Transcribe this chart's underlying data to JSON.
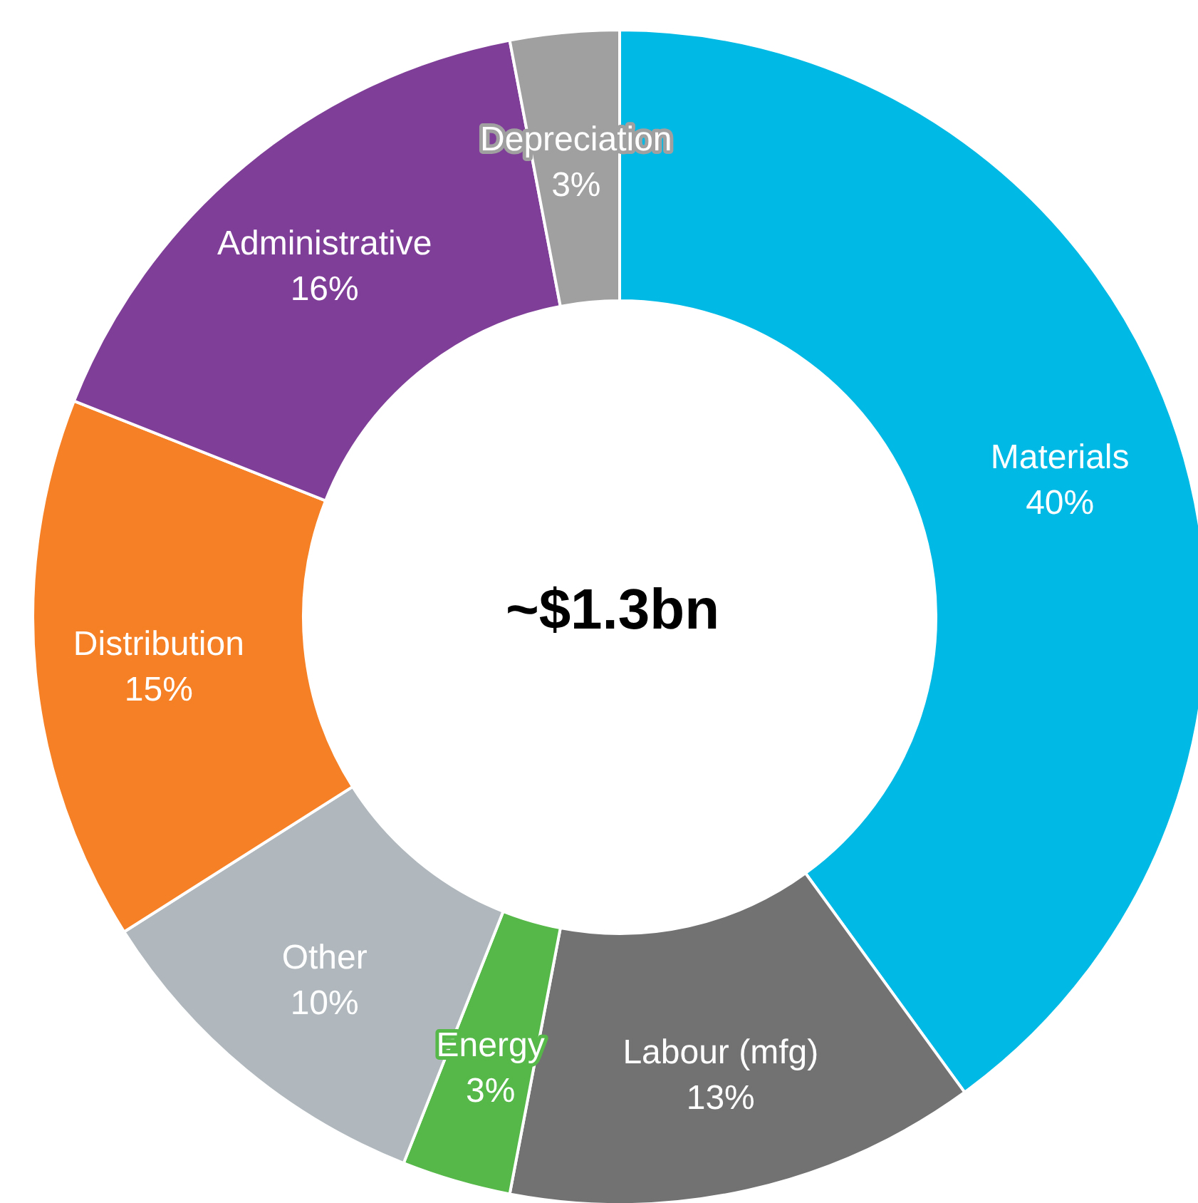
{
  "chart_data": {
    "type": "donut",
    "categories": [
      "Materials",
      "Labour (mfg)",
      "Energy",
      "Other",
      "Distribution",
      "Administrative",
      "Depreciation"
    ],
    "values": [
      40,
      13,
      3,
      10,
      15,
      16,
      3
    ],
    "value_labels": [
      "40%",
      "13%",
      "3%",
      "10%",
      "15%",
      "16%",
      "3%"
    ],
    "colors": [
      "#00b9e4",
      "#727272",
      "#55b848",
      "#b0b8bd",
      "#f58025",
      "#7f3f98",
      "#a0a0a0"
    ],
    "annotations": [
      "~$1.3bn"
    ],
    "legend": false
  }
}
